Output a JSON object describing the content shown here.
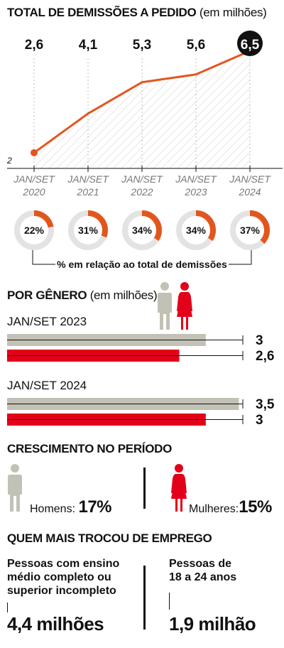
{
  "header": {
    "title": "TOTAL DE DEMISSÕES A PEDIDO",
    "subtitle": "(em milhões)"
  },
  "chart_data": [
    {
      "type": "line",
      "title": "TOTAL DE DEMISSÕES A PEDIDO",
      "unit": "(em milhões)",
      "categories": [
        "JAN/SET 2020",
        "JAN/SET 2021",
        "JAN/SET 2022",
        "JAN/SET 2023",
        "JAN/SET 2024"
      ],
      "values": [
        2.6,
        4.1,
        5.3,
        5.6,
        6.5
      ],
      "value_labels": [
        "2,6",
        "4,1",
        "5,3",
        "5,6",
        "6,5"
      ],
      "y_axis_label": "2",
      "ylim": [
        2,
        6.6
      ],
      "grid": false,
      "line_color": "#e2561e",
      "area_fill": "hatched grey"
    },
    {
      "type": "pie",
      "title": "% em relação ao total de demissões",
      "categories": [
        "JAN/SET 2020",
        "JAN/SET 2021",
        "JAN/SET 2022",
        "JAN/SET 2023",
        "JAN/SET 2024"
      ],
      "values": [
        22,
        31,
        34,
        34,
        37
      ],
      "value_labels": [
        "22%",
        "31%",
        "34%",
        "34%",
        "37%"
      ],
      "accent_color": "#e2561e",
      "track_color": "#e3e3e3"
    },
    {
      "type": "bar",
      "orientation": "horizontal",
      "title": "POR GÊNERO",
      "unit": "(em milhões)",
      "groups": [
        "JAN/SET 2023",
        "JAN/SET 2024"
      ],
      "series": [
        {
          "name": "Homens",
          "values": [
            3,
            3.5
          ],
          "labels": [
            "3",
            "3,5"
          ],
          "color": "#c2c1b5"
        },
        {
          "name": "Mulheres",
          "values": [
            2.6,
            3
          ],
          "labels": [
            "2,6",
            "3"
          ],
          "color": "#e2001a"
        }
      ],
      "xlim": [
        0,
        4.2
      ]
    }
  ],
  "growth": {
    "title": "CRESCIMENTO NO PERÍODO",
    "men_label": "Homens:",
    "men_value": "17%",
    "women_label": "Mulheres:",
    "women_value": "15%"
  },
  "switchers": {
    "title": "QUEM MAIS TROCOU DE EMPREGO",
    "left_text": [
      "Pessoas com ensino",
      "médio completo ou",
      "superior incompleto"
    ],
    "left_value": "4,4 milhões",
    "right_text": [
      "Pessoas de",
      "18 a 24 anos"
    ],
    "right_value": "1,9 milhão"
  },
  "colors": {
    "orange": "#e2561e",
    "red": "#e2001a",
    "grey": "#c2c1b5",
    "black": "#111111"
  },
  "icons": {
    "man": "man-icon",
    "woman": "woman-icon"
  }
}
